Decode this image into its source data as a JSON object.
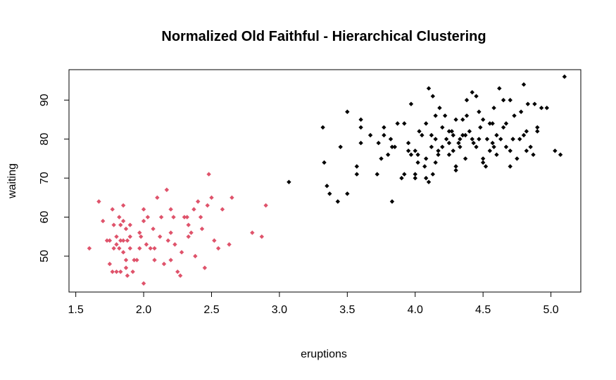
{
  "chart_data": {
    "type": "scatter",
    "title": "Normalized Old Faithful - Hierarchical Clustering",
    "xlabel": "eruptions",
    "ylabel": "waiting",
    "xlim": [
      1.45,
      5.22
    ],
    "ylim": [
      40.8,
      97.8
    ],
    "xticks": [
      "1.5",
      "2.0",
      "2.5",
      "3.0",
      "3.5",
      "4.0",
      "4.5",
      "5.0"
    ],
    "yticks": [
      "50",
      "60",
      "70",
      "80",
      "90"
    ],
    "grid": false,
    "legend": "none",
    "marker": "diamond",
    "series": [
      {
        "color": "#df536b",
        "points": [
          [
            1.6,
            52
          ],
          [
            1.67,
            64
          ],
          [
            1.7,
            59
          ],
          [
            1.73,
            54
          ],
          [
            1.75,
            54
          ],
          [
            1.75,
            48
          ],
          [
            1.77,
            46
          ],
          [
            1.77,
            62
          ],
          [
            1.78,
            58
          ],
          [
            1.78,
            52
          ],
          [
            1.8,
            46
          ],
          [
            1.8,
            53
          ],
          [
            1.8,
            55
          ],
          [
            1.82,
            52
          ],
          [
            1.82,
            60
          ],
          [
            1.83,
            54
          ],
          [
            1.83,
            58
          ],
          [
            1.83,
            46
          ],
          [
            1.85,
            63
          ],
          [
            1.85,
            59
          ],
          [
            1.85,
            54
          ],
          [
            1.85,
            51
          ],
          [
            1.87,
            57
          ],
          [
            1.87,
            49
          ],
          [
            1.87,
            47
          ],
          [
            1.88,
            45
          ],
          [
            1.88,
            54
          ],
          [
            1.9,
            58
          ],
          [
            1.9,
            52
          ],
          [
            1.9,
            55
          ],
          [
            1.92,
            46
          ],
          [
            1.93,
            49
          ],
          [
            1.95,
            49
          ],
          [
            1.97,
            52
          ],
          [
            1.97,
            56
          ],
          [
            1.98,
            55
          ],
          [
            2.0,
            62
          ],
          [
            2.0,
            43
          ],
          [
            2.0,
            59
          ],
          [
            2.02,
            53
          ],
          [
            2.03,
            60
          ],
          [
            2.05,
            52
          ],
          [
            2.07,
            57
          ],
          [
            2.08,
            52
          ],
          [
            2.08,
            49
          ],
          [
            2.1,
            65
          ],
          [
            2.12,
            55
          ],
          [
            2.13,
            60
          ],
          [
            2.15,
            48
          ],
          [
            2.17,
            67
          ],
          [
            2.18,
            54
          ],
          [
            2.2,
            62
          ],
          [
            2.2,
            49
          ],
          [
            2.2,
            56
          ],
          [
            2.22,
            60
          ],
          [
            2.23,
            53
          ],
          [
            2.25,
            46
          ],
          [
            2.27,
            45
          ],
          [
            2.28,
            51
          ],
          [
            2.3,
            60
          ],
          [
            2.32,
            60
          ],
          [
            2.33,
            58
          ],
          [
            2.33,
            55
          ],
          [
            2.35,
            56
          ],
          [
            2.37,
            62
          ],
          [
            2.38,
            50
          ],
          [
            2.4,
            64
          ],
          [
            2.42,
            60
          ],
          [
            2.43,
            57
          ],
          [
            2.45,
            47
          ],
          [
            2.47,
            63
          ],
          [
            2.48,
            71
          ],
          [
            2.5,
            65
          ],
          [
            2.52,
            54
          ],
          [
            2.55,
            52
          ],
          [
            2.58,
            62
          ],
          [
            2.63,
            53
          ],
          [
            2.65,
            65
          ],
          [
            2.8,
            56
          ],
          [
            2.87,
            55
          ],
          [
            2.9,
            63
          ]
        ]
      },
      {
        "color": "#000000",
        "points": [
          [
            3.07,
            69
          ],
          [
            3.32,
            83
          ],
          [
            3.33,
            74
          ],
          [
            3.35,
            68
          ],
          [
            3.37,
            66
          ],
          [
            3.43,
            64
          ],
          [
            3.45,
            78
          ],
          [
            3.5,
            66
          ],
          [
            3.5,
            87
          ],
          [
            3.57,
            71
          ],
          [
            3.57,
            73
          ],
          [
            3.6,
            79
          ],
          [
            3.6,
            83
          ],
          [
            3.6,
            85
          ],
          [
            3.67,
            81
          ],
          [
            3.72,
            71
          ],
          [
            3.73,
            79
          ],
          [
            3.75,
            75
          ],
          [
            3.77,
            81
          ],
          [
            3.77,
            83
          ],
          [
            3.8,
            76
          ],
          [
            3.82,
            80
          ],
          [
            3.83,
            64
          ],
          [
            3.83,
            78
          ],
          [
            3.85,
            78
          ],
          [
            3.87,
            84
          ],
          [
            3.9,
            70
          ],
          [
            3.92,
            84
          ],
          [
            3.92,
            71
          ],
          [
            3.95,
            77
          ],
          [
            3.95,
            79
          ],
          [
            3.97,
            89
          ],
          [
            3.97,
            76
          ],
          [
            4.0,
            71
          ],
          [
            4.0,
            70
          ],
          [
            4.0,
            77
          ],
          [
            4.02,
            76
          ],
          [
            4.03,
            82
          ],
          [
            4.05,
            81
          ],
          [
            4.07,
            73
          ],
          [
            4.08,
            70
          ],
          [
            4.08,
            75
          ],
          [
            4.08,
            84
          ],
          [
            4.1,
            93
          ],
          [
            4.1,
            69
          ],
          [
            4.12,
            78
          ],
          [
            4.12,
            81
          ],
          [
            4.13,
            71
          ],
          [
            4.13,
            91
          ],
          [
            4.15,
            80
          ],
          [
            4.15,
            86
          ],
          [
            4.17,
            77
          ],
          [
            4.17,
            76
          ],
          [
            4.18,
            88
          ],
          [
            4.2,
            78
          ],
          [
            4.2,
            83
          ],
          [
            4.22,
            86
          ],
          [
            4.23,
            80
          ],
          [
            4.25,
            79
          ],
          [
            4.25,
            76
          ],
          [
            4.27,
            82
          ],
          [
            4.28,
            77
          ],
          [
            4.3,
            72
          ],
          [
            4.3,
            73
          ],
          [
            4.32,
            79
          ],
          [
            4.33,
            80
          ],
          [
            4.33,
            78
          ],
          [
            4.35,
            81
          ],
          [
            4.35,
            85
          ],
          [
            4.37,
            75
          ],
          [
            4.37,
            81
          ],
          [
            4.38,
            90
          ],
          [
            4.4,
            82
          ],
          [
            4.42,
            92
          ],
          [
            4.43,
            79
          ],
          [
            4.45,
            78
          ],
          [
            4.45,
            91
          ],
          [
            4.47,
            87
          ],
          [
            4.47,
            80
          ],
          [
            4.5,
            74
          ],
          [
            4.5,
            75
          ],
          [
            4.52,
            73
          ],
          [
            4.53,
            80
          ],
          [
            4.55,
            77
          ],
          [
            4.57,
            84
          ],
          [
            4.58,
            78
          ],
          [
            4.6,
            76
          ],
          [
            4.6,
            81
          ],
          [
            4.62,
            93
          ],
          [
            4.63,
            80
          ],
          [
            4.65,
            83
          ],
          [
            4.67,
            84
          ],
          [
            4.67,
            78
          ],
          [
            4.7,
            77
          ],
          [
            4.7,
            73
          ],
          [
            4.72,
            80
          ],
          [
            4.73,
            86
          ],
          [
            4.75,
            75
          ],
          [
            4.77,
            80
          ],
          [
            4.78,
            87
          ],
          [
            4.8,
            94
          ],
          [
            4.8,
            81
          ],
          [
            4.82,
            82
          ],
          [
            4.83,
            89
          ],
          [
            4.85,
            78
          ],
          [
            4.87,
            76
          ],
          [
            4.88,
            89
          ],
          [
            4.9,
            83
          ],
          [
            4.93,
            88
          ],
          [
            4.97,
            88
          ],
          [
            5.03,
            77
          ],
          [
            5.07,
            76
          ],
          [
            5.1,
            96
          ],
          [
            4.42,
            80
          ],
          [
            4.48,
            83
          ],
          [
            4.58,
            88
          ],
          [
            4.7,
            90
          ],
          [
            4.9,
            82
          ],
          [
            4.55,
            84
          ],
          [
            4.25,
            82
          ],
          [
            4.28,
            81
          ],
          [
            4.38,
            86
          ],
          [
            4.5,
            85
          ],
          [
            4.57,
            79
          ],
          [
            4.15,
            74
          ],
          [
            4.65,
            90
          ],
          [
            4.72,
            80
          ],
          [
            4.82,
            77
          ],
          [
            4.3,
            85
          ],
          [
            4.02,
            74
          ]
        ]
      }
    ]
  }
}
